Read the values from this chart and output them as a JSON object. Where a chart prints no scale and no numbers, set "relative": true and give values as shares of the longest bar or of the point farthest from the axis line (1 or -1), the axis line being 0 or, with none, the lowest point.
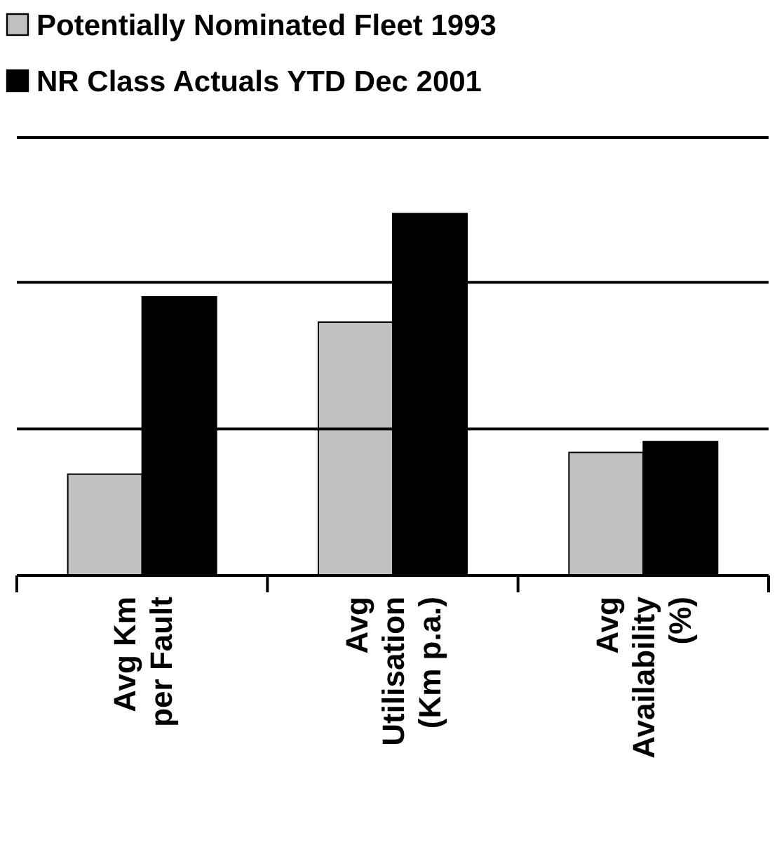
{
  "chart_data": {
    "type": "bar",
    "relative": true,
    "categories": [
      "Avg Km\nper Fault",
      "Avg\nUtilisation\n(Km p.a.)",
      "Avg\nAvailability\n(%)"
    ],
    "series": [
      {
        "name": "Potentially Nominated Fleet 1993",
        "color": "#c0c0c0",
        "values": [
          0.28,
          0.7,
          0.34
        ]
      },
      {
        "name": "NR Class Actuals YTD Dec 2001",
        "color": "#000000",
        "values": [
          0.77,
          1,
          0.37
        ]
      }
    ],
    "ref_lines": [
      {
        "axis": "y",
        "value": 0.405,
        "color": "#000000"
      },
      {
        "axis": "y",
        "value": 0.81,
        "color": "#000000"
      },
      {
        "axis": "y",
        "value": 1.21,
        "color": "#000000"
      }
    ],
    "legend": "top"
  }
}
